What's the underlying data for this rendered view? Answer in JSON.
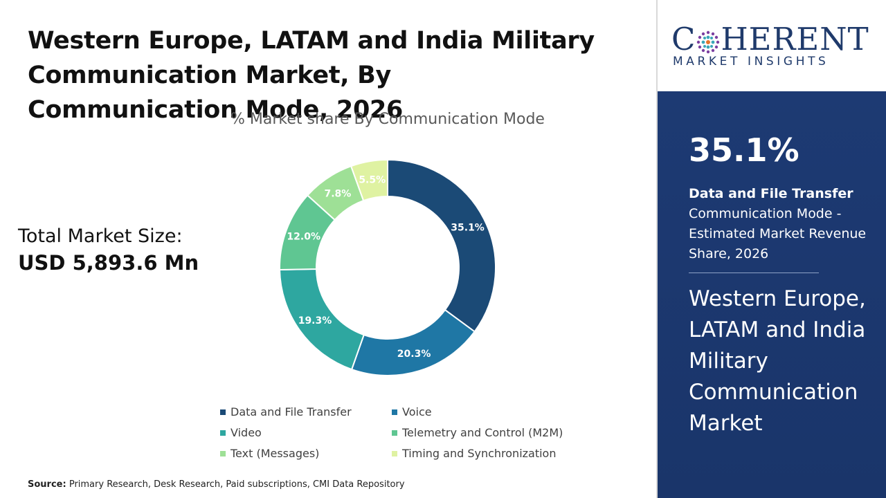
{
  "title": "Western Europe, LATAM and India Military Communication Market, By Communication Mode, 2026",
  "total_market": {
    "label": "Total Market Size:",
    "value": "USD 5,893.6 Mn"
  },
  "source": {
    "label": "Source:",
    "text": "Primary Research, Desk Research, Paid subscriptions, CMI Data Repository"
  },
  "logo": {
    "brand_pre": "C",
    "brand_post": "HERENT",
    "tagline": "MARKET INSIGHTS"
  },
  "highlight": {
    "value": "35.1%",
    "segment": "Data and File Transfer",
    "description": "Communication Mode - Estimated Market Revenue Share, 2026",
    "market_name": "Western Europe, LATAM and India Military Communication Market"
  },
  "colors": {
    "panel": "#1d3a73",
    "brand": "#1f3a6b"
  },
  "chart_data": {
    "type": "pie",
    "donut": true,
    "title": "% Market share By Communication Mode",
    "categories": [
      "Data and File Transfer",
      "Voice",
      "Video",
      "Telemetry and Control (M2M)",
      "Text (Messages)",
      "Timing and Synchronization"
    ],
    "values": [
      35.1,
      20.3,
      19.3,
      12.0,
      7.8,
      5.5
    ],
    "data_labels": [
      "35.1%",
      "20.3%",
      "19.3%",
      "12.0%",
      "7.8%",
      "5.5%"
    ],
    "colors": [
      "#1b4a76",
      "#1f77a5",
      "#2ea7a0",
      "#5fc692",
      "#9ee096",
      "#dff2a2"
    ],
    "legend_position": "bottom",
    "legend": [
      {
        "label": "Data and File Transfer",
        "color": "#1b4a76"
      },
      {
        "label": "Voice",
        "color": "#1f77a5"
      },
      {
        "label": "Video",
        "color": "#2ea7a0"
      },
      {
        "label": "Telemetry and Control (M2M)",
        "color": "#5fc692"
      },
      {
        "label": "Text (Messages)",
        "color": "#9ee096"
      },
      {
        "label": "Timing and Synchronization",
        "color": "#dff2a2"
      }
    ]
  }
}
